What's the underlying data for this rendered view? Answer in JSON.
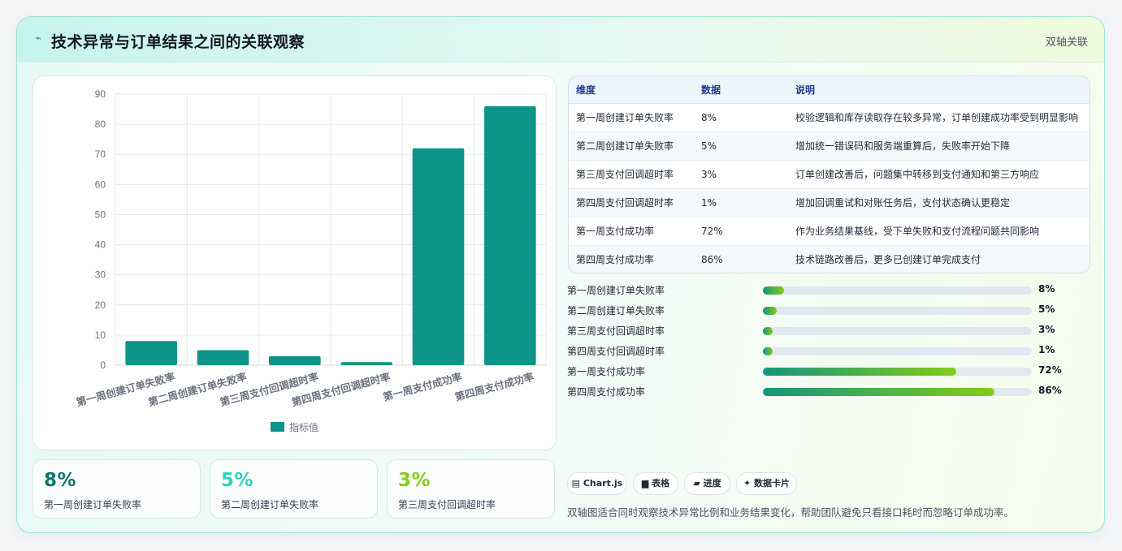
{
  "header": {
    "icon": "bolt-icon",
    "title": "技术异常与订单结果之间的关联观察",
    "tag": "双轴关联"
  },
  "chart_data": {
    "type": "bar",
    "categories": [
      "第一周创建订单失败率",
      "第二周创建订单失败率",
      "第三周支付回调超时率",
      "第四周支付回调超时率",
      "第一周支付成功率",
      "第四周支付成功率"
    ],
    "series": [
      {
        "name": "指标值",
        "values": [
          8,
          5,
          3,
          1,
          72,
          86
        ],
        "color": "#0d9488"
      }
    ],
    "yticks": [
      "0",
      "10",
      "20",
      "30",
      "40",
      "50",
      "60",
      "70",
      "80",
      "90"
    ],
    "ylim": [
      0,
      90
    ],
    "grid": true,
    "legend": "bottom"
  },
  "kpis": [
    {
      "value": "8%",
      "label": "第一周创建订单失败率",
      "color": "#0f766e"
    },
    {
      "value": "5%",
      "label": "第二周创建订单失败率",
      "color": "#2dd4bf"
    },
    {
      "value": "3%",
      "label": "第三周支付回调超时率",
      "color": "#84cc16"
    }
  ],
  "table": {
    "headers": [
      "维度",
      "数据",
      "说明"
    ],
    "rows": [
      [
        "第一周创建订单失败率",
        "8%",
        "校验逻辑和库存读取存在较多异常，订单创建成功率受到明显影响"
      ],
      [
        "第二周创建订单失败率",
        "5%",
        "增加统一错误码和服务端重算后，失败率开始下降"
      ],
      [
        "第三周支付回调超时率",
        "3%",
        "订单创建改善后，问题集中转移到支付通知和第三方响应"
      ],
      [
        "第四周支付回调超时率",
        "1%",
        "增加回调重试和对账任务后，支付状态确认更稳定"
      ],
      [
        "第一周支付成功率",
        "72%",
        "作为业务结果基线，受下单失败和支付流程问题共同影响"
      ],
      [
        "第四周支付成功率",
        "86%",
        "技术链路改善后，更多已创建订单完成支付"
      ]
    ]
  },
  "progress": [
    {
      "label": "第一周创建订单失败率",
      "value": "8%",
      "fraction": 0.08
    },
    {
      "label": "第二周创建订单失败率",
      "value": "5%",
      "fraction": 0.05
    },
    {
      "label": "第三周支付回调超时率",
      "value": "3%",
      "fraction": 0.03
    },
    {
      "label": "第四周支付回调超时率",
      "value": "1%",
      "fraction": 0.01
    },
    {
      "label": "第一周支付成功率",
      "value": "72%",
      "fraction": 0.72
    },
    {
      "label": "第四周支付成功率",
      "value": "86%",
      "fraction": 0.86
    }
  ],
  "chips": [
    {
      "icon": "chart-icon",
      "label": "▤ Chart.js"
    },
    {
      "icon": "table-icon",
      "label": "▆ 表格"
    },
    {
      "icon": "progress-icon",
      "label": "▰ 进度"
    },
    {
      "icon": "sparkle-icon",
      "label": "✦ 数据卡片"
    }
  ],
  "note": "双轴图适合同时观察技术异常比例和业务结果变化，帮助团队避免只看接口耗时而忽略订单成功率。"
}
